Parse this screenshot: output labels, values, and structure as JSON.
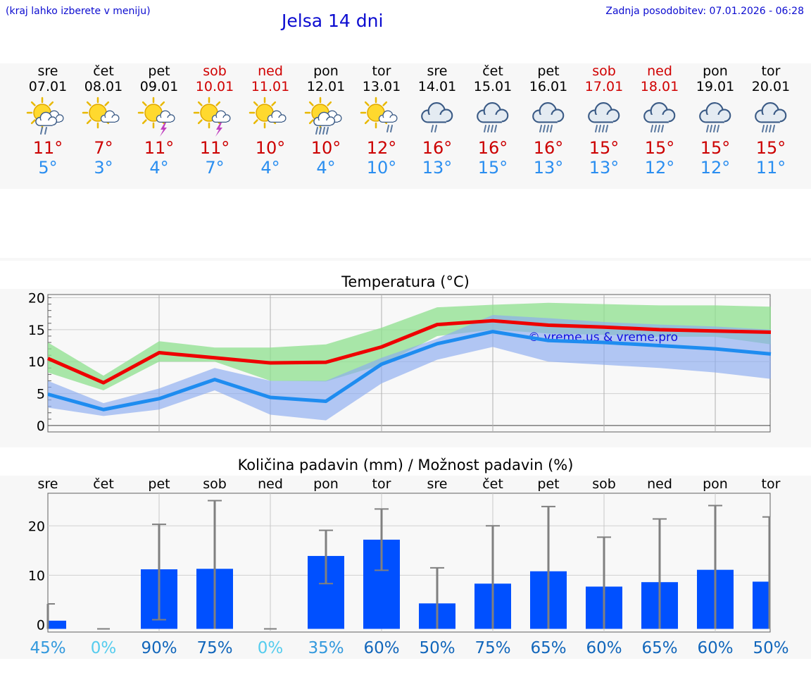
{
  "header": {
    "hint": "(kraj lahko izberete v meniju)",
    "title": "Jelsa 14 dni",
    "updated": "Zadnja posodobitev: 07.01.2026 - 06:28"
  },
  "days": [
    {
      "name": "sre",
      "date": "07.01",
      "tmax": "11°",
      "tmin": "5°",
      "weekend": false,
      "icon": "sun-cloud-rain-icon"
    },
    {
      "name": "čet",
      "date": "08.01",
      "tmax": "7°",
      "tmin": "3°",
      "weekend": false,
      "icon": "sun-cloud-icon"
    },
    {
      "name": "pet",
      "date": "09.01",
      "tmax": "11°",
      "tmin": "4°",
      "weekend": false,
      "icon": "sun-cloud-thunder-icon"
    },
    {
      "name": "sob",
      "date": "10.01",
      "tmax": "11°",
      "tmin": "7°",
      "weekend": true,
      "icon": "sun-cloud-thunder-icon"
    },
    {
      "name": "ned",
      "date": "11.01",
      "tmax": "10°",
      "tmin": "4°",
      "weekend": true,
      "icon": "sun-cloud-icon"
    },
    {
      "name": "pon",
      "date": "12.01",
      "tmax": "10°",
      "tmin": "4°",
      "weekend": false,
      "icon": "sun-cloud-heavy-rain-icon"
    },
    {
      "name": "tor",
      "date": "13.01",
      "tmax": "12°",
      "tmin": "10°",
      "weekend": false,
      "icon": "sun-cloud-light-rain-icon"
    },
    {
      "name": "sre",
      "date": "14.01",
      "tmax": "16°",
      "tmin": "13°",
      "weekend": false,
      "icon": "cloud-rain-icon"
    },
    {
      "name": "čet",
      "date": "15.01",
      "tmax": "16°",
      "tmin": "15°",
      "weekend": false,
      "icon": "cloud-heavy-rain-icon"
    },
    {
      "name": "pet",
      "date": "16.01",
      "tmax": "16°",
      "tmin": "13°",
      "weekend": false,
      "icon": "cloud-heavy-rain-icon"
    },
    {
      "name": "sob",
      "date": "17.01",
      "tmax": "15°",
      "tmin": "13°",
      "weekend": true,
      "icon": "cloud-heavy-rain-icon"
    },
    {
      "name": "ned",
      "date": "18.01",
      "tmax": "15°",
      "tmin": "12°",
      "weekend": true,
      "icon": "cloud-heavy-rain-icon"
    },
    {
      "name": "pon",
      "date": "19.01",
      "tmax": "15°",
      "tmin": "12°",
      "weekend": false,
      "icon": "cloud-heavy-rain-icon"
    },
    {
      "name": "tor",
      "date": "20.01",
      "tmax": "15°",
      "tmin": "11°",
      "weekend": false,
      "icon": "cloud-heavy-rain-icon"
    }
  ],
  "colors": {
    "max": "#ee0000",
    "min": "#1e8cf0",
    "maxBand": "#8ee08e",
    "minBand": "#8aaaf0",
    "bar": "#0050ff",
    "whisker": "#808080",
    "pctLow": "#55ccee",
    "pctMid": "#3399dd",
    "pctHigh": "#1166bb"
  },
  "chart_data": [
    {
      "type": "line",
      "title": "Temperatura (°C)",
      "ylim": [
        -1,
        20.5
      ],
      "yticks": [
        0,
        5,
        10,
        15,
        20
      ],
      "watermark": "© vreme.us & vreme.pro",
      "x": [
        0,
        1,
        2,
        3,
        4,
        5,
        6,
        7,
        8,
        9,
        10,
        11,
        12,
        13
      ],
      "series": [
        {
          "name": "max",
          "values": [
            10.5,
            6.7,
            11.4,
            10.6,
            9.8,
            9.9,
            12.3,
            15.8,
            16.4,
            15.7,
            15.4,
            15.0,
            14.8,
            14.6
          ]
        },
        {
          "name": "min",
          "values": [
            4.9,
            2.5,
            4.2,
            7.2,
            4.4,
            3.8,
            9.6,
            12.8,
            14.7,
            13.3,
            13.0,
            12.5,
            12.0,
            11.2
          ]
        }
      ],
      "bands": [
        {
          "name": "max-range",
          "low": [
            8.3,
            5.5,
            10.0,
            10.0,
            7.0,
            6.9,
            9.5,
            14.0,
            15.0,
            14.4,
            14.2,
            13.9,
            13.9,
            12.7
          ],
          "high": [
            13.0,
            7.8,
            13.2,
            12.2,
            12.2,
            12.7,
            15.3,
            18.5,
            18.9,
            19.2,
            19.0,
            18.8,
            18.8,
            18.6
          ]
        },
        {
          "name": "min-range",
          "low": [
            2.8,
            1.5,
            2.5,
            5.5,
            1.7,
            0.8,
            6.6,
            10.3,
            12.3,
            10.0,
            9.5,
            9.0,
            8.3,
            7.3
          ],
          "high": [
            7.0,
            3.5,
            5.8,
            9.0,
            7.0,
            7.0,
            10.6,
            13.6,
            17.3,
            16.8,
            16.2,
            15.8,
            15.5,
            15.0
          ]
        }
      ]
    },
    {
      "type": "bar",
      "title": "Količina padavin (mm) / Možnost padavin (%)",
      "ylim": [
        -1.5,
        26.6
      ],
      "yticks": [
        0,
        10,
        20
      ],
      "categories": [
        "sre",
        "čet",
        "pet",
        "sob",
        "ned",
        "pon",
        "tor",
        "sre",
        "čet",
        "pet",
        "sob",
        "ned",
        "pon",
        "tor"
      ],
      "values": [
        0.8,
        0,
        11.2,
        11.3,
        0,
        13.9,
        17.2,
        4.3,
        8.3,
        10.8,
        7.7,
        8.6,
        11.1,
        8.7
      ],
      "err_low": [
        0,
        0,
        1.0,
        0,
        0,
        8.3,
        11.0,
        0,
        0,
        0,
        0,
        0,
        0,
        0
      ],
      "err_high": [
        4.2,
        0,
        20.3,
        25.1,
        0,
        19.1,
        23.4,
        11.5,
        20.0,
        23.9,
        17.7,
        21.4,
        24.1,
        21.8
      ],
      "probability": [
        "45%",
        "0%",
        "90%",
        "75%",
        "0%",
        "35%",
        "60%",
        "50%",
        "75%",
        "65%",
        "60%",
        "65%",
        "60%",
        "50%"
      ]
    }
  ]
}
